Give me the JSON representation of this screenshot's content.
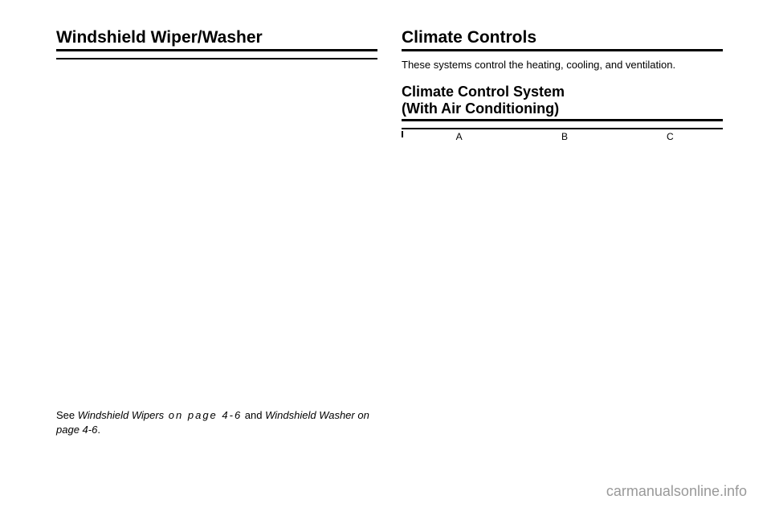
{
  "left": {
    "heading": "Windshield Wiper/Washer",
    "caption_prefix": "See ",
    "caption_link1": "Windshield Wipers",
    "caption_mid1": " on page 4-6",
    "caption_connector": " and ",
    "caption_link2": "Windshield Washer",
    "caption_mid2": " on page 4-6",
    "caption_suffix": "."
  },
  "right": {
    "heading": "Climate Controls",
    "intro": "These systems control the heating, cooling, and ventilation.",
    "subheading1": "Climate Control System",
    "subheading2": "(With Air Conditioning)",
    "labels": {
      "a": "A",
      "b": "B",
      "c": "C"
    }
  },
  "watermark": "carmanualsonline.info"
}
